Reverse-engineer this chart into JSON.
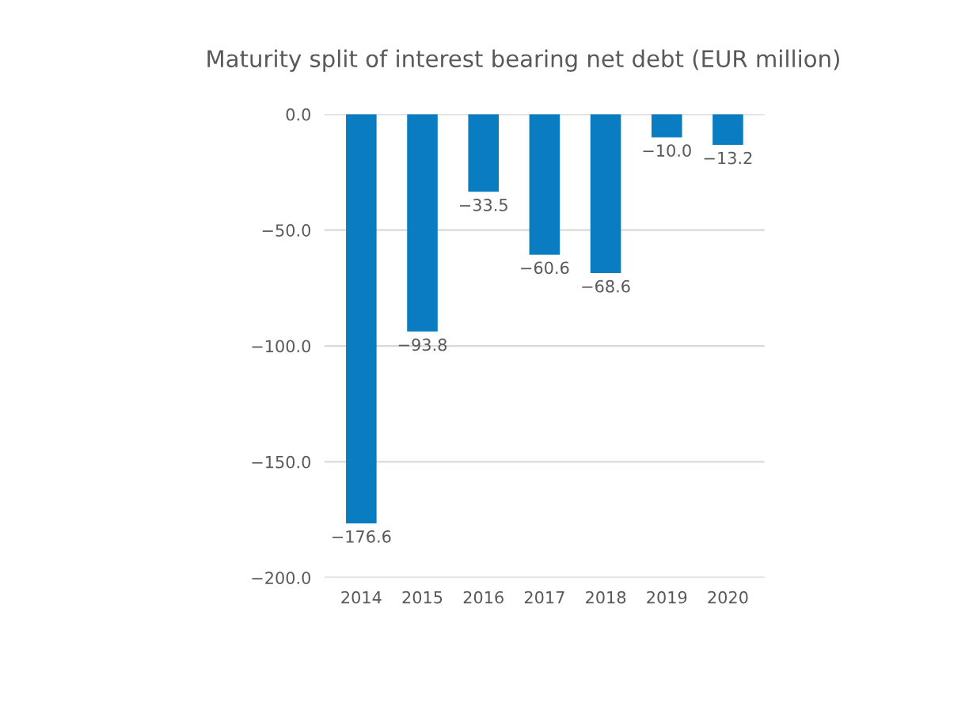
{
  "chart_data": {
    "type": "bar",
    "title": "Maturity split of interest bearing net debt (EUR million)",
    "categories": [
      "2014",
      "2015",
      "2016",
      "2017",
      "2018",
      "2019",
      "2020"
    ],
    "values": [
      -176.6,
      -93.8,
      -33.5,
      -60.6,
      -68.6,
      -10.0,
      -13.2
    ],
    "value_labels": [
      "−176.6",
      "−93.8",
      "−33.5",
      "−60.6",
      "−68.6",
      "−10.0",
      "−13.2"
    ],
    "color": "#0a7cc2",
    "ylim": [
      -200,
      0
    ],
    "yticks": [
      {
        "value": 0,
        "label": "0.0"
      },
      {
        "value": -50,
        "label": "−50.0"
      },
      {
        "value": -100,
        "label": "−100.0"
      },
      {
        "value": -150,
        "label": "−150.0"
      },
      {
        "value": -200,
        "label": "−200.0"
      }
    ],
    "grid": "y"
  }
}
